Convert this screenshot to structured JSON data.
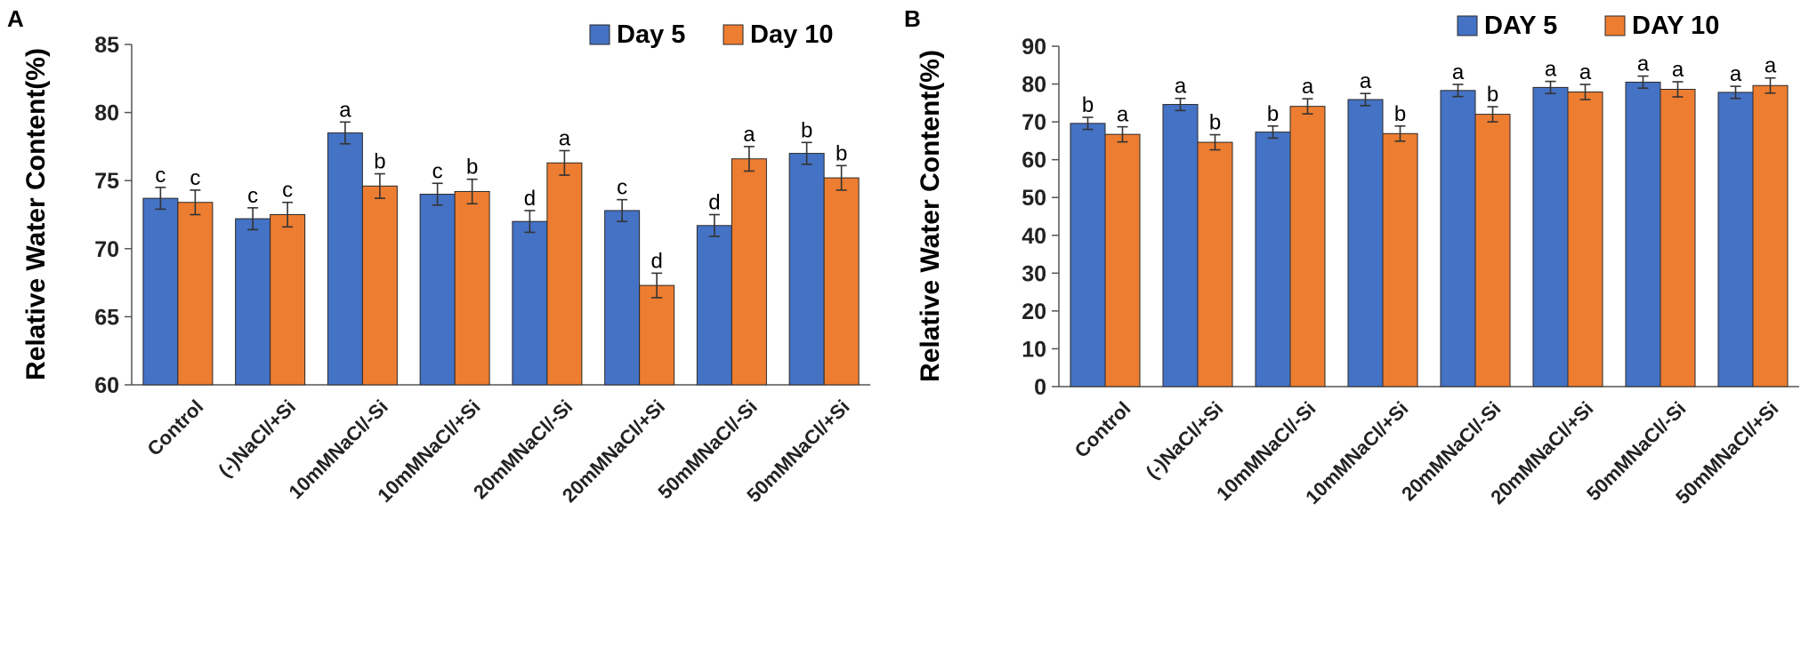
{
  "chart_data": [
    {
      "panel": "A",
      "type": "bar",
      "title": "",
      "xlabel": "",
      "ylabel": "Relative Water Content(%)",
      "ylim": [
        60,
        85
      ],
      "yticks": [
        60,
        65,
        70,
        75,
        80,
        85
      ],
      "legend_position": "top-right",
      "categories": [
        "Control",
        "(-)NaCl/+Si",
        "10mMNaCl/-Si",
        "10mMNaCl/+Si",
        "20mMNaCl/-Si",
        "20mMNaCl/+Si",
        "50mMNaCl/-Si",
        "50mMNaCl/+Si"
      ],
      "series": [
        {
          "name": "Day 5",
          "color": "#4472C4",
          "values": [
            73.7,
            72.2,
            78.5,
            74.0,
            72.0,
            72.8,
            71.7,
            77.0
          ],
          "errors": [
            0.8,
            0.8,
            0.8,
            0.8,
            0.8,
            0.8,
            0.8,
            0.8
          ],
          "labels": [
            "c",
            "c",
            "a",
            "c",
            "d",
            "c",
            "d",
            "b"
          ]
        },
        {
          "name": "Day 10",
          "color": "#ED7D31",
          "values": [
            73.4,
            72.5,
            74.6,
            74.2,
            76.3,
            67.3,
            76.6,
            75.2
          ],
          "errors": [
            0.9,
            0.9,
            0.9,
            0.9,
            0.9,
            0.9,
            0.9,
            0.9
          ],
          "labels": [
            "c",
            "c",
            "b",
            "b",
            "a",
            "d",
            "a",
            "b"
          ]
        }
      ]
    },
    {
      "panel": "B",
      "type": "bar",
      "title": "",
      "xlabel": "",
      "ylabel": "Relative Water Content(%)",
      "ylim": [
        0,
        90
      ],
      "yticks": [
        0,
        10,
        20,
        30,
        40,
        50,
        60,
        70,
        80,
        90
      ],
      "legend_position": "top-right",
      "categories": [
        "Control",
        "(-)NaCl/+Si",
        "10mMNaCl/-Si",
        "10mMNaCl/+Si",
        "20mMNaCl/-Si",
        "20mMNaCl/+Si",
        "50mMNaCl/-Si",
        "50mMNaCl/+Si"
      ],
      "series": [
        {
          "name": "DAY 5",
          "color": "#4472C4",
          "values": [
            69.6,
            74.6,
            67.3,
            75.9,
            78.3,
            79.1,
            80.5,
            77.8
          ],
          "errors": [
            1.6,
            1.6,
            1.6,
            1.6,
            1.6,
            1.6,
            1.6,
            1.6
          ],
          "labels": [
            "b",
            "a",
            "b",
            "a",
            "a",
            "a",
            "a",
            "a"
          ]
        },
        {
          "name": "DAY 10",
          "color": "#ED7D31",
          "values": [
            66.7,
            64.6,
            74.1,
            66.9,
            72.0,
            77.9,
            78.6,
            79.6
          ],
          "errors": [
            2.0,
            2.0,
            2.0,
            2.0,
            2.0,
            2.0,
            2.0,
            2.0
          ],
          "labels": [
            "a",
            "b",
            "a",
            "b",
            "b",
            "a",
            "a",
            "a"
          ]
        }
      ]
    }
  ]
}
